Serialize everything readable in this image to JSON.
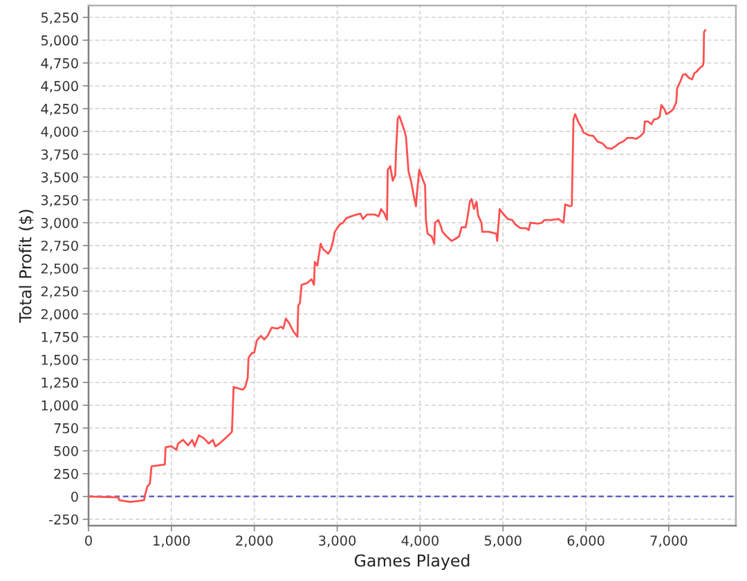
{
  "chart_data": {
    "type": "line",
    "xlabel": "Games Played",
    "ylabel": "Total Profit ($)",
    "x": [
      0,
      360,
      370,
      500,
      600,
      670,
      680,
      710,
      740,
      760,
      920,
      930,
      1000,
      1060,
      1080,
      1140,
      1200,
      1250,
      1280,
      1330,
      1390,
      1450,
      1500,
      1530,
      1580,
      1640,
      1700,
      1730,
      1750,
      1860,
      1890,
      1920,
      1930,
      1970,
      2000,
      2030,
      2080,
      2120,
      2160,
      2210,
      2280,
      2320,
      2350,
      2380,
      2420,
      2470,
      2520,
      2530,
      2550,
      2570,
      2640,
      2690,
      2720,
      2730,
      2760,
      2800,
      2830,
      2890,
      2920,
      2950,
      2970,
      3030,
      3070,
      3110,
      3200,
      3280,
      3310,
      3360,
      3450,
      3500,
      3530,
      3570,
      3600,
      3610,
      3640,
      3670,
      3700,
      3710,
      3730,
      3750,
      3780,
      3810,
      3830,
      3860,
      3890,
      3920,
      3950,
      3960,
      3990,
      4030,
      4060,
      4070,
      4090,
      4140,
      4170,
      4180,
      4220,
      4250,
      4270,
      4320,
      4380,
      4420,
      4470,
      4500,
      4550,
      4570,
      4600,
      4620,
      4650,
      4680,
      4700,
      4740,
      4750,
      4830,
      4920,
      4930,
      4960,
      5000,
      5060,
      5110,
      5150,
      5210,
      5280,
      5310,
      5330,
      5420,
      5470,
      5500,
      5580,
      5670,
      5730,
      5750,
      5810,
      5830,
      5850,
      5870,
      5910,
      5950,
      5970,
      6030,
      6090,
      6140,
      6200,
      6250,
      6310,
      6360,
      6400,
      6450,
      6500,
      6560,
      6610,
      6660,
      6700,
      6710,
      6750,
      6790,
      6820,
      6860,
      6890,
      6910,
      6950,
      6970,
      7010,
      7050,
      7090,
      7100,
      7140,
      7170,
      7200,
      7240,
      7280,
      7310,
      7330,
      7380,
      7410,
      7420,
      7425,
      7440
    ],
    "series": [
      {
        "color": "#ff5050",
        "values": [
          0,
          -10,
          -40,
          -60,
          -50,
          -40,
          10,
          110,
          140,
          330,
          350,
          540,
          550,
          510,
          580,
          620,
          560,
          620,
          550,
          670,
          640,
          580,
          620,
          550,
          580,
          630,
          680,
          710,
          1200,
          1170,
          1200,
          1300,
          1520,
          1570,
          1580,
          1710,
          1760,
          1720,
          1760,
          1850,
          1840,
          1860,
          1840,
          1950,
          1900,
          1810,
          1750,
          2090,
          2120,
          2320,
          2340,
          2380,
          2320,
          2570,
          2530,
          2770,
          2710,
          2660,
          2700,
          2800,
          2900,
          2980,
          3000,
          3050,
          3080,
          3100,
          3040,
          3090,
          3090,
          3070,
          3150,
          3100,
          3030,
          3580,
          3620,
          3460,
          3520,
          3790,
          4140,
          4170,
          4090,
          4010,
          3940,
          3560,
          3460,
          3310,
          3180,
          3300,
          3580,
          3480,
          3410,
          3030,
          2880,
          2850,
          2770,
          3000,
          3030,
          2960,
          2900,
          2850,
          2800,
          2820,
          2850,
          2950,
          2950,
          3050,
          3230,
          3260,
          3150,
          3230,
          3080,
          3000,
          2900,
          2900,
          2880,
          2800,
          3150,
          3100,
          3040,
          3030,
          2980,
          2940,
          2940,
          2920,
          3000,
          2990,
          3000,
          3030,
          3030,
          3040,
          3000,
          3200,
          3180,
          3190,
          4130,
          4190,
          4100,
          4040,
          3990,
          3960,
          3950,
          3890,
          3870,
          3820,
          3810,
          3840,
          3870,
          3890,
          3930,
          3930,
          3920,
          3950,
          3990,
          4110,
          4110,
          4080,
          4130,
          4140,
          4160,
          4290,
          4240,
          4190,
          4210,
          4240,
          4320,
          4470,
          4550,
          4620,
          4630,
          4590,
          4570,
          4640,
          4650,
          4700,
          4720,
          4760,
          5090,
          5110
        ]
      }
    ],
    "xlim": [
      0,
      7810
    ],
    "xticks": [
      0,
      {
        "value": 1000,
        "label": "1,000"
      },
      {
        "value": 2000,
        "label": "2,000"
      },
      {
        "value": 3000,
        "label": "3,000"
      },
      {
        "value": 4000,
        "label": "4,000"
      },
      {
        "value": 5000,
        "label": "5,000"
      },
      {
        "value": 6000,
        "label": "6,000"
      },
      {
        "value": 7000,
        "label": "7,000"
      }
    ],
    "ylim": [
      -320,
      5380
    ],
    "yticks": [
      -250,
      0,
      250,
      500,
      750,
      {
        "value": 1000,
        "label": "1,000"
      },
      {
        "value": 1250,
        "label": "1,250"
      },
      {
        "value": 1500,
        "label": "1,500"
      },
      {
        "value": 1750,
        "label": "1,750"
      },
      {
        "value": 2000,
        "label": "2,000"
      },
      {
        "value": 2250,
        "label": "2,250"
      },
      {
        "value": 2500,
        "label": "2,500"
      },
      {
        "value": 2750,
        "label": "2,750"
      },
      {
        "value": 3000,
        "label": "3,000"
      },
      {
        "value": 3250,
        "label": "3,250"
      },
      {
        "value": 3500,
        "label": "3,500"
      },
      {
        "value": 3750,
        "label": "3,750"
      },
      {
        "value": 4000,
        "label": "4,000"
      },
      {
        "value": 4250,
        "label": "4,250"
      },
      {
        "value": 4500,
        "label": "4,500"
      },
      {
        "value": 4750,
        "label": "4,750"
      },
      {
        "value": 5000,
        "label": "5,000"
      },
      {
        "value": 5250,
        "label": "5,250"
      }
    ],
    "ref_lines": [
      {
        "axis": "y",
        "value": 0,
        "color": "#6060c0",
        "line_style": "dashed"
      }
    ],
    "grid": true,
    "line_style": "solid"
  }
}
